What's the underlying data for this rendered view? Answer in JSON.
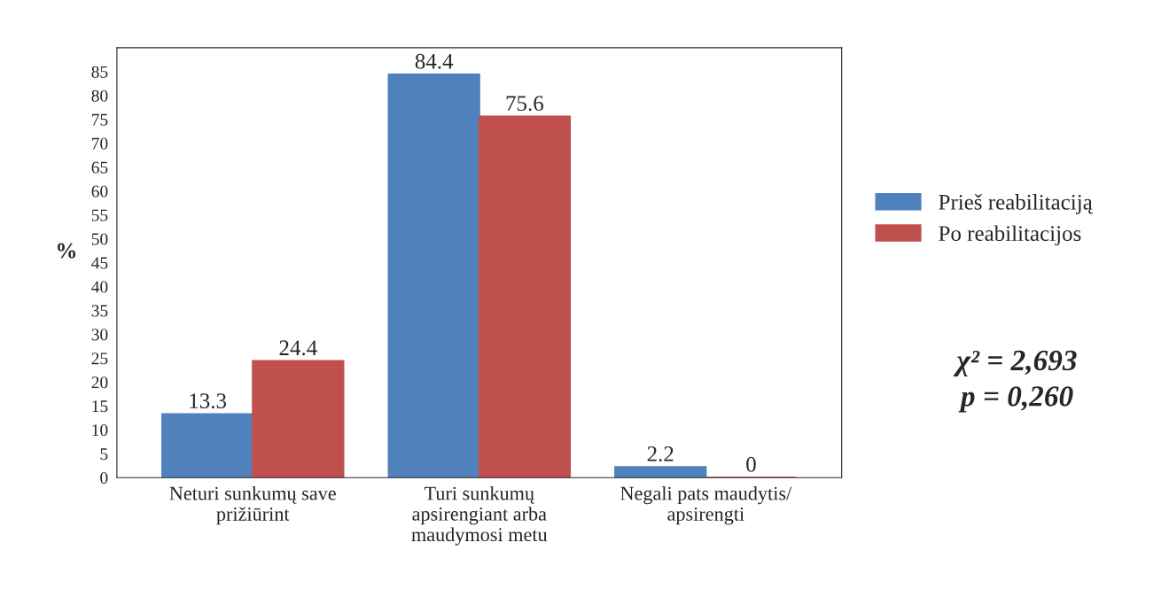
{
  "chart_data": {
    "type": "bar",
    "ylabel": "%",
    "categories": [
      "Neturi sunkumų save\nprižiūrint",
      "Turi sunkumų\napsirengiant arba\nmaudymosi metu",
      "Negali pats maudytis/\napsirengti"
    ],
    "series": [
      {
        "name": "Prieš reabilitaciją",
        "color": "#4f81bd",
        "values": [
          13.3,
          84.4,
          2.2
        ]
      },
      {
        "name": "Po reabilitacijos",
        "color": "#c0504d",
        "values": [
          24.4,
          75.6,
          0
        ]
      }
    ],
    "ylim": [
      0,
      90
    ],
    "yticks": [
      0,
      5,
      10,
      15,
      20,
      25,
      30,
      35,
      40,
      45,
      50,
      55,
      60,
      65,
      70,
      75,
      80,
      85
    ],
    "data_labels": true,
    "legend": "right",
    "grid": false,
    "annotations": [
      "χ² = 2,693",
      "p = 0,260"
    ]
  }
}
